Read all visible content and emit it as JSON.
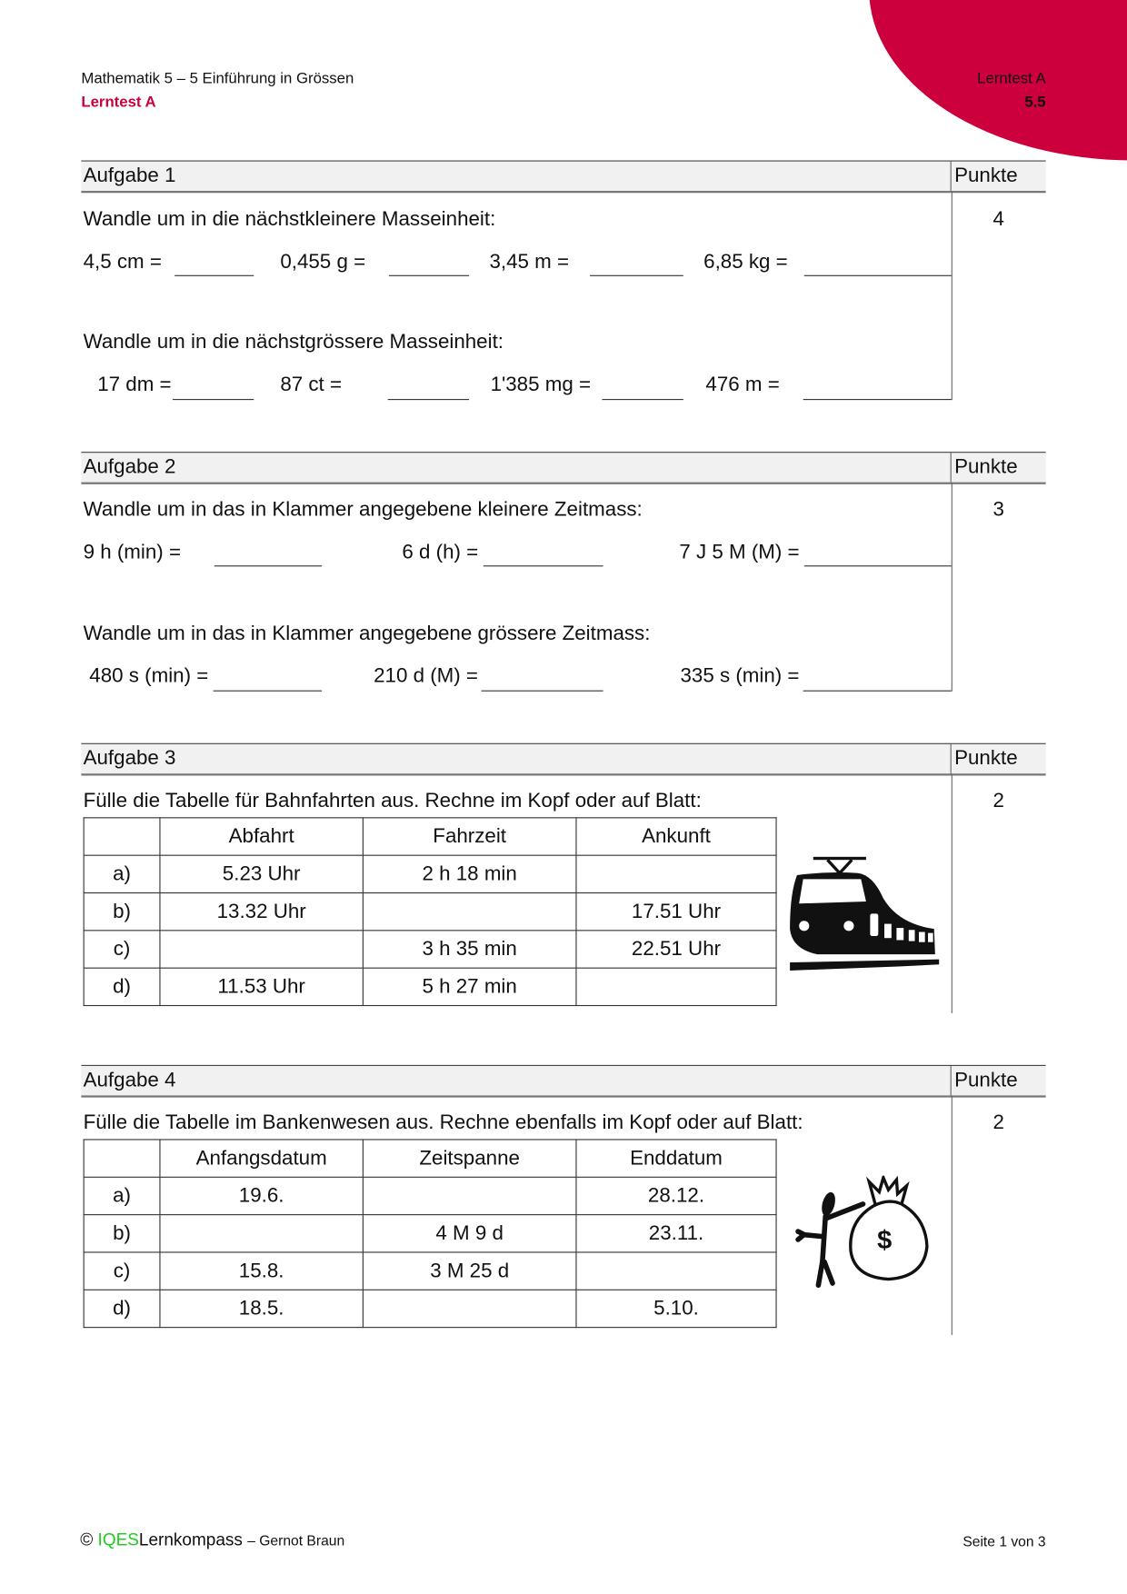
{
  "header": {
    "course": "Mathematik 5 – 5 Einführung in Grössen",
    "test": "Lerntest A",
    "right_test": "Lerntest A",
    "right_num": "5.5",
    "accent": "#cc003c"
  },
  "punkte_label": "Punkte",
  "a1": {
    "title": "Aufgabe 1",
    "points": "4",
    "instr1": "Wandle um in die nächstkleinere Masseinheit:",
    "row1": [
      "4,5 cm =",
      "0,455 g =",
      "3,45 m =",
      "6,85 kg ="
    ],
    "instr2": "Wandle um in die nächstgrössere Masseinheit:",
    "row2": [
      "17 dm =",
      "87 ct =",
      "1'385 mg =",
      "476 m ="
    ]
  },
  "a2": {
    "title": "Aufgabe 2",
    "points": "3",
    "instr1": "Wandle um in das in Klammer angegebene kleinere Zeitmass:",
    "row1": [
      "9 h (min) =",
      "6 d (h) =",
      "7 J 5 M (M) ="
    ],
    "instr2": "Wandle um in das in Klammer angegebene grössere Zeitmass:",
    "row2": [
      "480 s (min) =",
      "210 d (M) =",
      "335 s (min) ="
    ]
  },
  "a3": {
    "title": "Aufgabe 3",
    "points": "2",
    "instr": "Fülle die Tabelle für Bahnfahrten aus. Rechne im Kopf oder auf Blatt:",
    "headers": [
      "",
      "Abfahrt",
      "Fahrzeit",
      "Ankunft"
    ],
    "rows": [
      [
        "a)",
        "5.23 Uhr",
        "2 h 18 min",
        ""
      ],
      [
        "b)",
        "13.32 Uhr",
        "",
        "17.51 Uhr"
      ],
      [
        "c)",
        "",
        "3 h 35 min",
        "22.51 Uhr"
      ],
      [
        "d)",
        "11.53 Uhr",
        "5 h 27 min",
        ""
      ]
    ],
    "icon": "train-icon"
  },
  "a4": {
    "title": "Aufgabe 4",
    "points": "2",
    "instr": "Fülle die Tabelle im Bankenwesen aus. Rechne ebenfalls im Kopf oder auf Blatt:",
    "headers": [
      "",
      "Anfangsdatum",
      "Zeitspanne",
      "Enddatum"
    ],
    "rows": [
      [
        "a)",
        "19.6.",
        "",
        "28.12."
      ],
      [
        "b)",
        "",
        "4 M 9 d",
        "23.11."
      ],
      [
        "c)",
        "15.8.",
        "3 M 25 d",
        ""
      ],
      [
        "d)",
        "18.5.",
        "",
        "5.10."
      ]
    ],
    "icon": "money-bag-icon"
  },
  "footer": {
    "copyright": "©",
    "brand1": "IQES",
    "brand2": "Lernkompass",
    "author": "– Gernot Braun",
    "page": "Seite 1 von 3",
    "brand_color": "#22cc22"
  }
}
